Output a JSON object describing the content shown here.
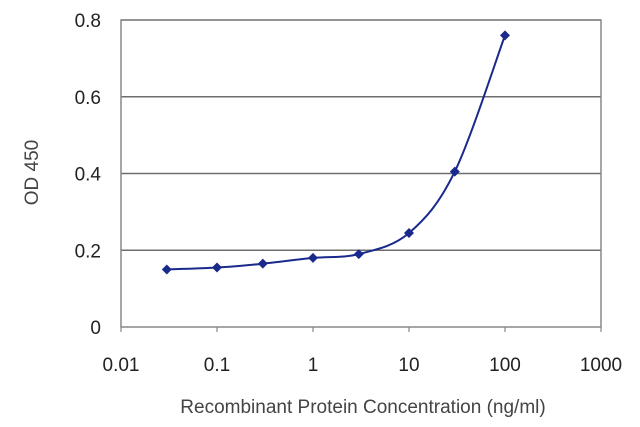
{
  "chart_data": {
    "type": "line",
    "title": "",
    "xlabel": "Recombinant Protein Concentration (ng/ml)",
    "ylabel": "OD 450",
    "x_scale": "log",
    "xlim": [
      0.01,
      1000
    ],
    "ylim": [
      0,
      0.8
    ],
    "x_ticks": [
      "0.01",
      "0.1",
      "1",
      "10",
      "100",
      "1000"
    ],
    "y_ticks": [
      "0",
      "0.2",
      "0.4",
      "0.6",
      "0.8"
    ],
    "grid": "horizontal",
    "series": [
      {
        "x": [
          0.03,
          0.1,
          0.3,
          1,
          3,
          10,
          30,
          100
        ],
        "y": [
          0.15,
          0.155,
          0.165,
          0.18,
          0.19,
          0.245,
          0.405,
          0.76
        ],
        "color": "#1a2a8c",
        "marker": "diamond"
      }
    ]
  }
}
